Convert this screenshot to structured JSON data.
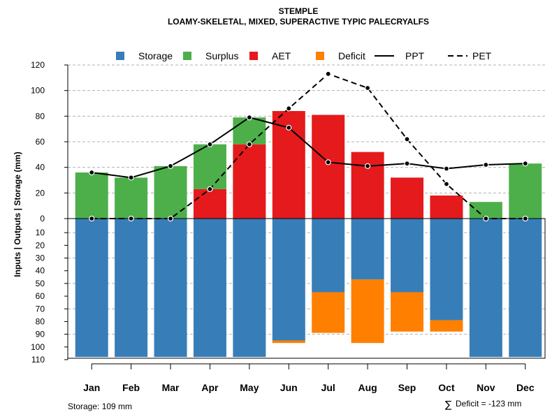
{
  "chart_data": {
    "type": "bar",
    "title": "STEMPLE",
    "subtitle": "LOAMY-SKELETAL, MIXED, SUPERACTIVE TYPIC PALECRYALFS",
    "ylabel": "Inputs | Outputs | Storage    (mm)",
    "categories": [
      "Jan",
      "Feb",
      "Mar",
      "Apr",
      "May",
      "Jun",
      "Jul",
      "Aug",
      "Sep",
      "Oct",
      "Nov",
      "Dec"
    ],
    "upper_ylim": [
      0,
      120
    ],
    "upper_ticks": [
      "0",
      "20",
      "40",
      "60",
      "80",
      "100",
      "120"
    ],
    "lower_ylim": [
      0,
      110
    ],
    "lower_ticks": [
      "0",
      "10",
      "20",
      "30",
      "40",
      "50",
      "60",
      "70",
      "80",
      "90",
      "100",
      "110"
    ],
    "series": [
      {
        "name": "AET",
        "values": [
          0,
          0,
          0,
          23,
          58,
          84,
          81,
          52,
          32,
          18,
          0,
          0
        ]
      },
      {
        "name": "Surplus",
        "values": [
          36,
          32,
          41,
          35,
          21,
          0,
          0,
          0,
          0,
          0,
          13,
          43
        ]
      },
      {
        "name": "Storage",
        "values": [
          109,
          109,
          109,
          109,
          109,
          96,
          58,
          48,
          58,
          80,
          109,
          109
        ]
      },
      {
        "name": "Deficit",
        "values": [
          0,
          0,
          0,
          0,
          0,
          2,
          32,
          50,
          31,
          9,
          0,
          0
        ]
      },
      {
        "name": "PPT",
        "values": [
          36,
          32,
          41,
          58,
          79,
          71,
          44,
          41,
          43,
          39,
          42,
          43
        ]
      },
      {
        "name": "PET",
        "values": [
          0,
          0,
          0,
          23,
          58,
          86,
          113,
          102,
          62,
          27,
          0,
          0
        ]
      }
    ],
    "legend": [
      {
        "name": "Storage",
        "kind": "square",
        "color": "#377EB8"
      },
      {
        "name": "Surplus",
        "kind": "square",
        "color": "#4DAF4A"
      },
      {
        "name": "AET",
        "kind": "square",
        "color": "#E41A1C"
      },
      {
        "name": "Deficit",
        "kind": "square",
        "color": "#FF7F00"
      },
      {
        "name": "PPT",
        "kind": "solid-line",
        "color": "#000000"
      },
      {
        "name": "PET",
        "kind": "dashed-line",
        "color": "#000000"
      }
    ],
    "legend_position": "top-center",
    "grid": true,
    "colors": {
      "storage": "#377EB8",
      "surplus": "#4DAF4A",
      "aet": "#E41A1C",
      "deficit": "#FF7F00",
      "grid": "#B0B0B0",
      "line": "#000000"
    }
  },
  "footer": {
    "storage_text": "Storage: 109 mm",
    "deficit_symbol": "∑",
    "deficit_text": "Deficit = -123 mm"
  }
}
